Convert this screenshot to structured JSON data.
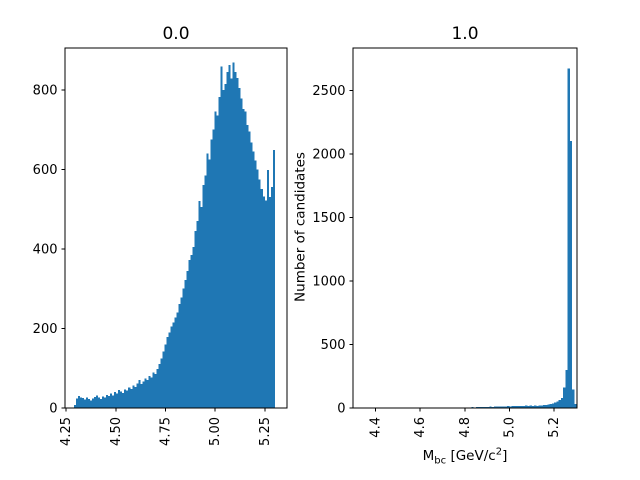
{
  "figure": {
    "background": "#ffffff",
    "bar_color": "#1f77b4",
    "axis_color": "#000000"
  },
  "labels": {
    "ylabel": "Number of candidates",
    "xlabel": {
      "base": "M",
      "sub": "bc",
      "mid": " [GeV/c",
      "sup": "2",
      "end": "]"
    }
  },
  "chart_data": [
    {
      "type": "bar",
      "name": "left",
      "title": "0.0",
      "bar_color": "#1f77b4",
      "xlim": [
        4.2445,
        5.3614
      ],
      "ylim": [
        0,
        905
      ],
      "bin_start": 4.29,
      "bin_width": 0.0101,
      "x_tick_values": [
        4.25,
        4.5,
        4.75,
        5.0,
        5.25
      ],
      "x_tick_labels": [
        "4.25",
        "4.50",
        "4.75",
        "5.00",
        "5.25"
      ],
      "y_tick_values": [
        0,
        200,
        400,
        600,
        800
      ],
      "y_tick_labels": [
        "0",
        "200",
        "400",
        "600",
        "800"
      ],
      "grid": false,
      "legend": null,
      "values": [
        8,
        24,
        30,
        27,
        25,
        21,
        26,
        23,
        19,
        24,
        28,
        31,
        26,
        23,
        29,
        27,
        33,
        30,
        36,
        32,
        40,
        37,
        45,
        41,
        38,
        46,
        44,
        52,
        48,
        56,
        53,
        62,
        70,
        60,
        67,
        74,
        71,
        81,
        77,
        89,
        86,
        98,
        110,
        125,
        142,
        160,
        178,
        190,
        205,
        215,
        228,
        240,
        262,
        278,
        300,
        322,
        345,
        372,
        385,
        405,
        445,
        470,
        520,
        505,
        560,
        585,
        640,
        625,
        675,
        700,
        745,
        735,
        782,
        858,
        800,
        815,
        845,
        862,
        828,
        868,
        845,
        830,
        805,
        778,
        752,
        745,
        712,
        695,
        668,
        645,
        622,
        600,
        575,
        550,
        532,
        522,
        598,
        530,
        555,
        648
      ]
    },
    {
      "type": "bar",
      "name": "right",
      "title": "1.0",
      "bar_color": "#1f77b4",
      "xlim": [
        4.2998,
        5.3022
      ],
      "ylim": [
        0,
        2833
      ],
      "bin_start": 4.3,
      "bin_width": 0.01,
      "x_tick_values": [
        4.4,
        4.6,
        4.8,
        5.0,
        5.2
      ],
      "x_tick_labels": [
        "4.4",
        "4.6",
        "4.8",
        "5.0",
        "5.2"
      ],
      "y_tick_values": [
        0,
        500,
        1000,
        1500,
        2000,
        2500
      ],
      "y_tick_labels": [
        "0",
        "500",
        "1000",
        "1500",
        "2000",
        "2500"
      ],
      "grid": false,
      "legend": null,
      "values": [
        0,
        0,
        0,
        0,
        0,
        0,
        0,
        0,
        0,
        0,
        0,
        0,
        0,
        0,
        0,
        0,
        0,
        0,
        0,
        0,
        0,
        0,
        0,
        0,
        0,
        0,
        0,
        0,
        0,
        0,
        0,
        1,
        0,
        0,
        1,
        0,
        1,
        0,
        1,
        1,
        1,
        2,
        1,
        2,
        2,
        3,
        2,
        3,
        3,
        4,
        4,
        5,
        4,
        6,
        5,
        7,
        6,
        8,
        7,
        9,
        8,
        10,
        9,
        11,
        10,
        12,
        11,
        13,
        12,
        14,
        13,
        15,
        14,
        16,
        15,
        17,
        16,
        18,
        17,
        20,
        16,
        18,
        17,
        20,
        19,
        22,
        24,
        27,
        31,
        36,
        45,
        52,
        62,
        78,
        160,
        300,
        2670,
        2100,
        145,
        30
      ]
    }
  ]
}
